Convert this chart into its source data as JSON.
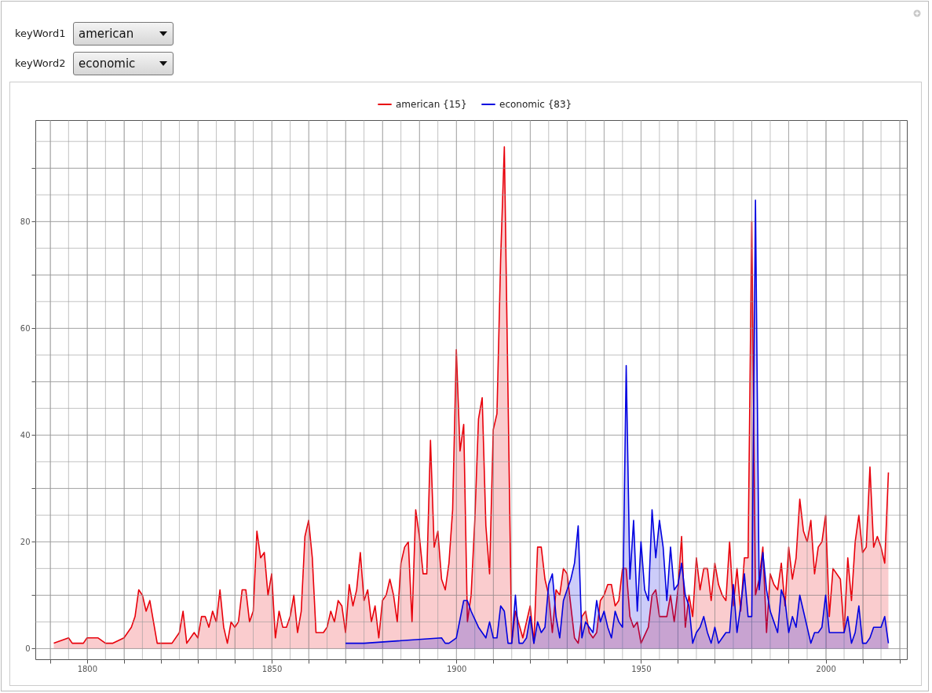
{
  "chart_data": {
    "type": "area",
    "annotations": [
      "keyWord1",
      "american",
      "keyWord2",
      "economic"
    ],
    "xlim": [
      1786,
      2022
    ],
    "ylim": [
      -2,
      99
    ],
    "xticks": [
      {
        "value": 1790,
        "label": null
      },
      {
        "value": 1795,
        "label": null
      },
      1800,
      {
        "value": 1805,
        "label": null
      },
      {
        "value": 1810,
        "label": null
      },
      {
        "value": 1815,
        "label": null
      },
      {
        "value": 1820,
        "label": null
      },
      {
        "value": 1825,
        "label": null
      },
      {
        "value": 1830,
        "label": null
      },
      {
        "value": 1835,
        "label": null
      },
      {
        "value": 1840,
        "label": null
      },
      {
        "value": 1845,
        "label": null
      },
      1850,
      {
        "value": 1855,
        "label": null
      },
      {
        "value": 1860,
        "label": null
      },
      {
        "value": 1865,
        "label": null
      },
      {
        "value": 1870,
        "label": null
      },
      {
        "value": 1875,
        "label": null
      },
      {
        "value": 1880,
        "label": null
      },
      {
        "value": 1885,
        "label": null
      },
      {
        "value": 1890,
        "label": null
      },
      {
        "value": 1895,
        "label": null
      },
      1900,
      {
        "value": 1905,
        "label": null
      },
      {
        "value": 1910,
        "label": null
      },
      {
        "value": 1915,
        "label": null
      },
      {
        "value": 1920,
        "label": null
      },
      {
        "value": 1925,
        "label": null
      },
      {
        "value": 1930,
        "label": null
      },
      {
        "value": 1935,
        "label": null
      },
      {
        "value": 1940,
        "label": null
      },
      {
        "value": 1945,
        "label": null
      },
      1950,
      {
        "value": 1955,
        "label": null
      },
      {
        "value": 1960,
        "label": null
      },
      {
        "value": 1965,
        "label": null
      },
      {
        "value": 1970,
        "label": null
      },
      {
        "value": 1975,
        "label": null
      },
      {
        "value": 1980,
        "label": null
      },
      {
        "value": 1985,
        "label": null
      },
      {
        "value": 1990,
        "label": null
      },
      {
        "value": 1995,
        "label": null
      },
      2000,
      {
        "value": 2005,
        "label": null
      },
      {
        "value": 2010,
        "label": null
      },
      {
        "value": 2015,
        "label": null
      },
      {
        "value": 2020,
        "label": null
      }
    ],
    "yticks": [
      0,
      {
        "value": 5,
        "label": null
      },
      {
        "value": 10,
        "label": null
      },
      {
        "value": 15,
        "label": null
      },
      20,
      {
        "value": 25,
        "label": null
      },
      {
        "value": 30,
        "label": null
      },
      {
        "value": 35,
        "label": null
      },
      40,
      {
        "value": 45,
        "label": null
      },
      {
        "value": 50,
        "label": null
      },
      {
        "value": 55,
        "label": null
      },
      60,
      {
        "value": 65,
        "label": null
      },
      {
        "value": 70,
        "label": null
      },
      {
        "value": 75,
        "label": null
      },
      80,
      {
        "value": 85,
        "label": null
      },
      {
        "value": 90,
        "label": null
      },
      {
        "value": 95,
        "label": null
      }
    ],
    "grid": true,
    "legend": "top",
    "series": [
      {
        "name": "american {15}",
        "color": "#e8000b",
        "x": [
          1791,
          1795,
          1796,
          1799,
          1800,
          1803,
          1805,
          1807,
          1810,
          1812,
          1813,
          1814,
          1815,
          1816,
          1817,
          1819,
          1823,
          1825,
          1826,
          1827,
          1829,
          1830,
          1831,
          1832,
          1833,
          1834,
          1835,
          1836,
          1837,
          1838,
          1839,
          1840,
          1841,
          1842,
          1843,
          1844,
          1845,
          1846,
          1847,
          1848,
          1849,
          1850,
          1851,
          1852,
          1853,
          1854,
          1855,
          1856,
          1857,
          1858,
          1859,
          1860,
          1861,
          1862,
          1864,
          1865,
          1866,
          1867,
          1868,
          1869,
          1870,
          1871,
          1872,
          1873,
          1874,
          1875,
          1876,
          1877,
          1878,
          1879,
          1880,
          1881,
          1882,
          1883,
          1884,
          1885,
          1886,
          1887,
          1888,
          1889,
          1890,
          1891,
          1892,
          1893,
          1894,
          1895,
          1896,
          1897,
          1898,
          1899,
          1900,
          1901,
          1902,
          1903,
          1904,
          1905,
          1906,
          1907,
          1908,
          1909,
          1910,
          1911,
          1912,
          1913,
          1915,
          1916,
          1918,
          1920,
          1921,
          1922,
          1923,
          1924,
          1925,
          1926,
          1927,
          1928,
          1929,
          1930,
          1931,
          1932,
          1933,
          1934,
          1935,
          1936,
          1937,
          1938,
          1939,
          1940,
          1941,
          1942,
          1943,
          1944,
          1945,
          1946,
          1947,
          1948,
          1949,
          1950,
          1952,
          1953,
          1954,
          1955,
          1957,
          1958,
          1959,
          1960,
          1961,
          1962,
          1963,
          1964,
          1965,
          1966,
          1967,
          1968,
          1969,
          1970,
          1971,
          1972,
          1973,
          1974,
          1975,
          1976,
          1977,
          1978,
          1979,
          1980,
          1981,
          1982,
          1983,
          1984,
          1985,
          1986,
          1987,
          1988,
          1989,
          1990,
          1991,
          1992,
          1993,
          1994,
          1995,
          1996,
          1997,
          1998,
          1999,
          2000,
          2001,
          2002,
          2004,
          2005,
          2006,
          2007,
          2008,
          2009,
          2010,
          2011,
          2012,
          2013,
          2014,
          2015,
          2016,
          2017
        ],
        "values": [
          1,
          2,
          1,
          1,
          2,
          2,
          1,
          1,
          2,
          4,
          6,
          11,
          10,
          7,
          9,
          1,
          1,
          3,
          7,
          1,
          3,
          2,
          6,
          6,
          4,
          7,
          5,
          11,
          4,
          1,
          5,
          4,
          5,
          11,
          11,
          5,
          7,
          22,
          17,
          18,
          10,
          14,
          2,
          7,
          4,
          4,
          6,
          10,
          3,
          7,
          21,
          24,
          17,
          3,
          3,
          4,
          7,
          5,
          9,
          8,
          3,
          12,
          8,
          11,
          18,
          9,
          11,
          5,
          8,
          2,
          9,
          10,
          13,
          10,
          5,
          16,
          19,
          20,
          5,
          26,
          21,
          14,
          14,
          39,
          19,
          22,
          13,
          11,
          16,
          26,
          56,
          37,
          42,
          5,
          10,
          24,
          43,
          47,
          23,
          14,
          41,
          44,
          73,
          94,
          1,
          7,
          2,
          8,
          1,
          19,
          19,
          13,
          10,
          3,
          11,
          10,
          15,
          14,
          8,
          2,
          1,
          6,
          7,
          3,
          2,
          3,
          9,
          10,
          12,
          12,
          8,
          9,
          15,
          15,
          6,
          4,
          5,
          1,
          4,
          10,
          11,
          6,
          6,
          10,
          5,
          11,
          21,
          4,
          10,
          6,
          17,
          11,
          15,
          15,
          9,
          16,
          12,
          10,
          9,
          20,
          8,
          15,
          7,
          17,
          17,
          80,
          10,
          13,
          19,
          3,
          14,
          12,
          11,
          16,
          8,
          19,
          13,
          17,
          28,
          22,
          20,
          24,
          14,
          19,
          20,
          25,
          6,
          15,
          13,
          3,
          17,
          9,
          20,
          25,
          18,
          19,
          34,
          19,
          21,
          19,
          16,
          33
        ]
      },
      {
        "name": "economic {83}",
        "color": "#0000e0",
        "x": [
          1870,
          1875,
          1896,
          1897,
          1898,
          1900,
          1902,
          1903,
          1904,
          1906,
          1908,
          1909,
          1910,
          1911,
          1912,
          1913,
          1914,
          1915,
          1916,
          1917,
          1918,
          1919,
          1920,
          1921,
          1922,
          1923,
          1924,
          1925,
          1926,
          1927,
          1928,
          1929,
          1930,
          1931,
          1932,
          1933,
          1934,
          1935,
          1936,
          1937,
          1938,
          1939,
          1940,
          1941,
          1942,
          1943,
          1944,
          1945,
          1946,
          1947,
          1948,
          1949,
          1950,
          1951,
          1952,
          1953,
          1954,
          1955,
          1956,
          1957,
          1958,
          1959,
          1960,
          1961,
          1962,
          1963,
          1964,
          1965,
          1966,
          1967,
          1968,
          1969,
          1970,
          1971,
          1972,
          1973,
          1974,
          1975,
          1976,
          1977,
          1978,
          1979,
          1980,
          1981,
          1982,
          1983,
          1984,
          1985,
          1986,
          1987,
          1988,
          1989,
          1990,
          1991,
          1992,
          1993,
          1994,
          1995,
          1996,
          1997,
          1998,
          1999,
          2000,
          2001,
          2002,
          2003,
          2004,
          2005,
          2006,
          2007,
          2008,
          2009,
          2010,
          2011,
          2012,
          2013,
          2014,
          2015,
          2016,
          2017
        ],
        "values": [
          1,
          1,
          2,
          1,
          1,
          2,
          9,
          9,
          7,
          4,
          2,
          5,
          2,
          2,
          8,
          7,
          1,
          1,
          10,
          1,
          1,
          2,
          6,
          1,
          5,
          3,
          4,
          12,
          14,
          6,
          2,
          9,
          11,
          13,
          16,
          23,
          2,
          5,
          4,
          3,
          9,
          5,
          7,
          4,
          2,
          7,
          5,
          4,
          53,
          13,
          24,
          7,
          20,
          11,
          9,
          26,
          17,
          24,
          19,
          9,
          19,
          11,
          12,
          16,
          10,
          8,
          1,
          3,
          4,
          6,
          3,
          1,
          4,
          1,
          2,
          3,
          3,
          12,
          3,
          8,
          14,
          6,
          6,
          84,
          11,
          18,
          11,
          7,
          5,
          3,
          11,
          9,
          3,
          6,
          4,
          10,
          7,
          4,
          1,
          3,
          3,
          4,
          10,
          3,
          3,
          3,
          3,
          3,
          6,
          1,
          3,
          8,
          1,
          1,
          2,
          4,
          4,
          4,
          6,
          1
        ]
      }
    ]
  }
}
